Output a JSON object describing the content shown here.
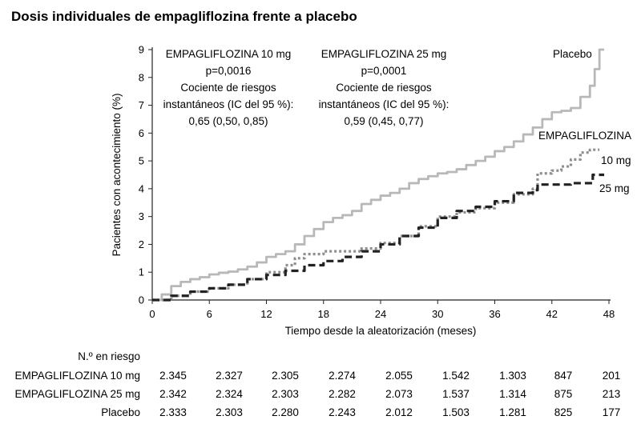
{
  "chart_data": {
    "type": "line",
    "title": "Dosis individuales de empagliflozina frente a placebo",
    "xlabel": "Tiempo desde la aleatorización (meses)",
    "ylabel": "Pacientes con acontecimiento (%)",
    "xlim": [
      0,
      48
    ],
    "ylim": [
      0,
      9
    ],
    "xticks": [
      "0",
      "6",
      "12",
      "18",
      "24",
      "30",
      "36",
      "42",
      "48"
    ],
    "yticks": [
      "0",
      "1",
      "2",
      "3",
      "4",
      "5",
      "6",
      "7",
      "8",
      "9"
    ],
    "grid": false,
    "annotations": [
      {
        "lines": [
          "EMPAGLIFLOZINA 10 mg",
          "p=0,0016",
          "Cociente de riesgos",
          "instantáneos (IC del 95 %):",
          "0,65 (0,50, 0,85)"
        ]
      },
      {
        "lines": [
          "EMPAGLIFLOZINA 25 mg",
          "p=0,0001",
          "Cociente de riesgos",
          "instantáneos (IC del 95 %):",
          "0,59 (0,45, 0,77)"
        ]
      }
    ],
    "series": [
      {
        "name": "Placebo",
        "color": "#b8b8b8",
        "style": "solid",
        "x": [
          0,
          1,
          2,
          3,
          4,
          5,
          6,
          7,
          8,
          9,
          10,
          11,
          12,
          13,
          14,
          15,
          16,
          17,
          18,
          19,
          20,
          21,
          22,
          23,
          24,
          25,
          26,
          27,
          28,
          29,
          30,
          31,
          32,
          33,
          34,
          35,
          36,
          37,
          38,
          39,
          40,
          41,
          42,
          43,
          44,
          45,
          46,
          46.5,
          47,
          47.5
        ],
        "values": [
          0,
          0.2,
          0.5,
          0.65,
          0.75,
          0.82,
          0.92,
          0.98,
          1.02,
          1.1,
          1.2,
          1.35,
          1.55,
          1.65,
          1.75,
          2.0,
          2.3,
          2.55,
          2.8,
          2.95,
          3.05,
          3.2,
          3.45,
          3.6,
          3.75,
          3.85,
          4.0,
          4.2,
          4.35,
          4.45,
          4.55,
          4.6,
          4.7,
          4.85,
          5.0,
          5.15,
          5.35,
          5.5,
          5.7,
          5.95,
          6.2,
          6.5,
          6.75,
          6.8,
          6.9,
          7.3,
          7.7,
          8.3,
          9.0,
          9.0
        ]
      },
      {
        "name": "10 mg",
        "color": "#8e8e8e",
        "style": "dotted",
        "x": [
          0,
          2,
          4,
          6,
          8,
          10,
          12,
          14,
          15,
          16,
          18,
          20,
          22,
          24,
          26,
          28,
          30,
          32,
          34,
          36,
          38,
          40,
          40.5,
          42,
          43,
          44,
          45,
          46,
          47
        ],
        "values": [
          0,
          0.15,
          0.3,
          0.42,
          0.55,
          0.75,
          1.0,
          1.25,
          1.5,
          1.65,
          1.75,
          1.75,
          1.85,
          2.05,
          2.3,
          2.65,
          3.0,
          3.15,
          3.3,
          3.5,
          3.8,
          4.0,
          4.55,
          4.65,
          4.8,
          5.05,
          5.3,
          5.4,
          5.4
        ]
      },
      {
        "name": "25 mg",
        "color": "#222222",
        "style": "dashed",
        "x": [
          0,
          2,
          4,
          6,
          8,
          10,
          12,
          14,
          16,
          18,
          20,
          22,
          24,
          26,
          28,
          30,
          32,
          34,
          36,
          38,
          40,
          40.5,
          42,
          44,
          46,
          46.3,
          47.5
        ],
        "values": [
          0,
          0.15,
          0.3,
          0.42,
          0.55,
          0.75,
          0.9,
          1.05,
          1.25,
          1.4,
          1.55,
          1.75,
          2.0,
          2.3,
          2.6,
          2.95,
          3.2,
          3.35,
          3.55,
          3.85,
          3.95,
          4.15,
          4.15,
          4.2,
          4.2,
          4.5,
          4.5
        ]
      }
    ],
    "series_labels": {
      "placebo": "Placebo",
      "empa": "EMPAGLIFLOZINA",
      "dose10": "10 mg",
      "dose25": "25 mg"
    },
    "risk_table": {
      "header": "N.º en riesgo",
      "rows": [
        {
          "label": "EMPAGLIFLOZINA 10 mg",
          "values": [
            "2.345",
            "2.327",
            "2.305",
            "2.274",
            "2.055",
            "1.542",
            "1.303",
            "847",
            "201"
          ]
        },
        {
          "label": "EMPAGLIFLOZINA 25 mg",
          "values": [
            "2.342",
            "2.324",
            "2.303",
            "2.282",
            "2.073",
            "1.537",
            "1.314",
            "875",
            "213"
          ]
        },
        {
          "label": "Placebo",
          "values": [
            "2.333",
            "2.303",
            "2.280",
            "2.243",
            "2.012",
            "1.503",
            "1.281",
            "825",
            "177"
          ]
        }
      ]
    }
  }
}
